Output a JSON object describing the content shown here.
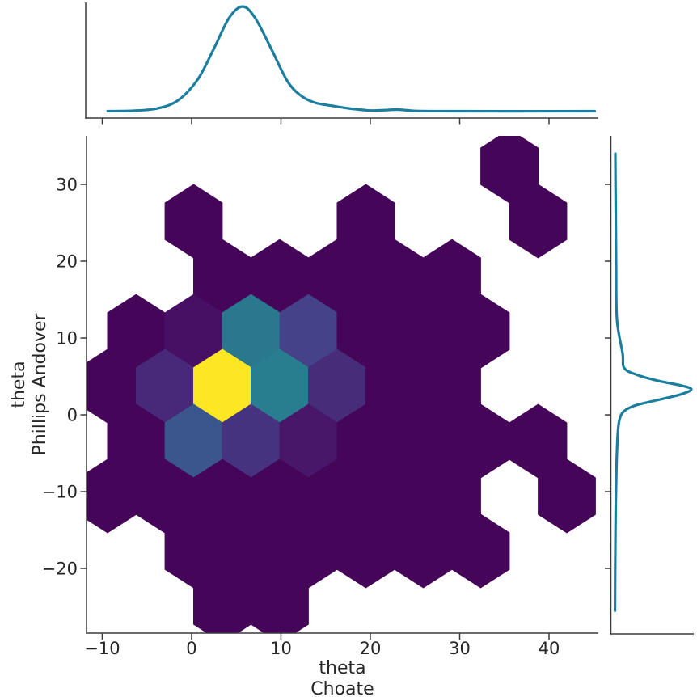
{
  "figure": {
    "background": "#ffffff",
    "xlabel_line1": "theta",
    "xlabel_line2": "Choate",
    "ylabel_line1": "theta",
    "ylabel_line2": "Phillips Andover"
  },
  "chart_data": {
    "type": "heatmap",
    "subtype": "hexbin-jointplot-with-marginal-kde",
    "title": "",
    "xlabel": "theta\nChoate",
    "ylabel": "theta\nPhillips Andover",
    "grid": false,
    "legend": "none",
    "colormap": "viridis",
    "x_range": [
      -11.76,
      45.52
    ],
    "y_range": [
      -28.42,
      36.32
    ],
    "x_ticks": [
      -10,
      0,
      10,
      20,
      30,
      40
    ],
    "x_tick_labels": [
      "−10",
      "0",
      "10",
      "20",
      "30",
      "40"
    ],
    "y_ticks": [
      30,
      20,
      10,
      0,
      -10,
      -20
    ],
    "y_tick_labels": [
      "30",
      "20",
      "10",
      "0",
      "−10",
      "−20"
    ],
    "colors": {
      "kde_line": "#1b7e9e",
      "axis": "#3a3a3a",
      "tick_label": "#262626",
      "hex_low": "#450559",
      "hex_high": "#fde725",
      "background": "#ffffff"
    },
    "hexbin": {
      "hex_width": 6.43,
      "hex_height": 9.58,
      "cells": [
        {
          "x": 35.57,
          "y": 32.37,
          "color": "#450559"
        },
        {
          "x": 0.23,
          "y": 25.21,
          "color": "#450559"
        },
        {
          "x": 19.5,
          "y": 25.21,
          "color": "#450559"
        },
        {
          "x": 38.78,
          "y": 25.21,
          "color": "#450559"
        },
        {
          "x": 3.44,
          "y": 18.05,
          "color": "#450559"
        },
        {
          "x": 9.86,
          "y": 18.05,
          "color": "#450559"
        },
        {
          "x": 16.29,
          "y": 18.05,
          "color": "#450559"
        },
        {
          "x": 22.71,
          "y": 18.05,
          "color": "#450559"
        },
        {
          "x": 29.14,
          "y": 18.05,
          "color": "#450559"
        },
        {
          "x": -6.2,
          "y": 10.89,
          "color": "#450559"
        },
        {
          "x": 0.23,
          "y": 10.89,
          "color": "#471065"
        },
        {
          "x": 6.65,
          "y": 10.89,
          "color": "#2a788e"
        },
        {
          "x": 13.08,
          "y": 10.89,
          "color": "#444289"
        },
        {
          "x": 19.5,
          "y": 10.89,
          "color": "#450559"
        },
        {
          "x": 25.93,
          "y": 10.89,
          "color": "#450559"
        },
        {
          "x": 32.35,
          "y": 10.89,
          "color": "#450559"
        },
        {
          "x": -9.41,
          "y": 3.74,
          "color": "#450559"
        },
        {
          "x": -2.99,
          "y": 3.74,
          "color": "#482878"
        },
        {
          "x": 3.44,
          "y": 3.74,
          "color": "#fde725"
        },
        {
          "x": 9.86,
          "y": 3.74,
          "color": "#287e8e"
        },
        {
          "x": 16.29,
          "y": 3.74,
          "color": "#472c7a"
        },
        {
          "x": 22.71,
          "y": 3.74,
          "color": "#450559"
        },
        {
          "x": 29.14,
          "y": 3.74,
          "color": "#450559"
        },
        {
          "x": -6.2,
          "y": -3.42,
          "color": "#450559"
        },
        {
          "x": 0.23,
          "y": -3.42,
          "color": "#3a568c"
        },
        {
          "x": 6.65,
          "y": -3.42,
          "color": "#46337f"
        },
        {
          "x": 13.08,
          "y": -3.42,
          "color": "#481769"
        },
        {
          "x": 19.5,
          "y": -3.42,
          "color": "#450559"
        },
        {
          "x": 25.93,
          "y": -3.42,
          "color": "#450559"
        },
        {
          "x": 32.35,
          "y": -3.42,
          "color": "#450559"
        },
        {
          "x": 38.78,
          "y": -3.42,
          "color": "#450559"
        },
        {
          "x": -9.41,
          "y": -10.58,
          "color": "#450559"
        },
        {
          "x": -2.99,
          "y": -10.58,
          "color": "#450559"
        },
        {
          "x": 3.44,
          "y": -10.58,
          "color": "#450559"
        },
        {
          "x": 9.86,
          "y": -10.58,
          "color": "#450559"
        },
        {
          "x": 16.29,
          "y": -10.58,
          "color": "#450559"
        },
        {
          "x": 22.71,
          "y": -10.58,
          "color": "#450559"
        },
        {
          "x": 29.14,
          "y": -10.58,
          "color": "#450559"
        },
        {
          "x": 41.99,
          "y": -10.58,
          "color": "#450559"
        },
        {
          "x": 0.23,
          "y": -17.74,
          "color": "#450559"
        },
        {
          "x": 6.65,
          "y": -17.74,
          "color": "#450559"
        },
        {
          "x": 13.08,
          "y": -17.74,
          "color": "#450559"
        },
        {
          "x": 19.5,
          "y": -17.74,
          "color": "#450559"
        },
        {
          "x": 25.93,
          "y": -17.74,
          "color": "#450559"
        },
        {
          "x": 32.35,
          "y": -17.74,
          "color": "#450559"
        },
        {
          "x": 3.44,
          "y": -24.89,
          "color": "#450559"
        },
        {
          "x": 9.86,
          "y": -24.89,
          "color": "#450559"
        }
      ]
    },
    "kde_top": {
      "points": [
        [
          -9.4,
          0.004
        ],
        [
          -6.5,
          0.008
        ],
        [
          -3.8,
          0.031
        ],
        [
          -1.5,
          0.108
        ],
        [
          0.7,
          0.308
        ],
        [
          2.5,
          0.6
        ],
        [
          4.2,
          0.892
        ],
        [
          5.7,
          1.0
        ],
        [
          7.1,
          0.892
        ],
        [
          8.9,
          0.6
        ],
        [
          10.7,
          0.292
        ],
        [
          12.2,
          0.154
        ],
        [
          13.8,
          0.085
        ],
        [
          15.8,
          0.054
        ],
        [
          17.9,
          0.027
        ],
        [
          20.0,
          0.01
        ],
        [
          21.8,
          0.015
        ],
        [
          23.1,
          0.019
        ],
        [
          25.2,
          0.006
        ],
        [
          29.2,
          0.004
        ],
        [
          36.5,
          0.003
        ],
        [
          45.1,
          0.004
        ]
      ]
    },
    "kde_right": {
      "points": [
        [
          34.0,
          0.01
        ],
        [
          26.6,
          0.016
        ],
        [
          19.3,
          0.021
        ],
        [
          12.4,
          0.032
        ],
        [
          8.0,
          0.105
        ],
        [
          6.1,
          0.126
        ],
        [
          5.2,
          0.295
        ],
        [
          4.4,
          0.579
        ],
        [
          3.8,
          0.874
        ],
        [
          3.3,
          1.0
        ],
        [
          2.6,
          0.842
        ],
        [
          1.9,
          0.547
        ],
        [
          1.2,
          0.263
        ],
        [
          0.4,
          0.116
        ],
        [
          -0.7,
          0.063
        ],
        [
          -2.5,
          0.042
        ],
        [
          -6.5,
          0.026
        ],
        [
          -11.8,
          0.016
        ],
        [
          -17.6,
          0.01
        ],
        [
          -25.5,
          0.006
        ]
      ]
    }
  }
}
